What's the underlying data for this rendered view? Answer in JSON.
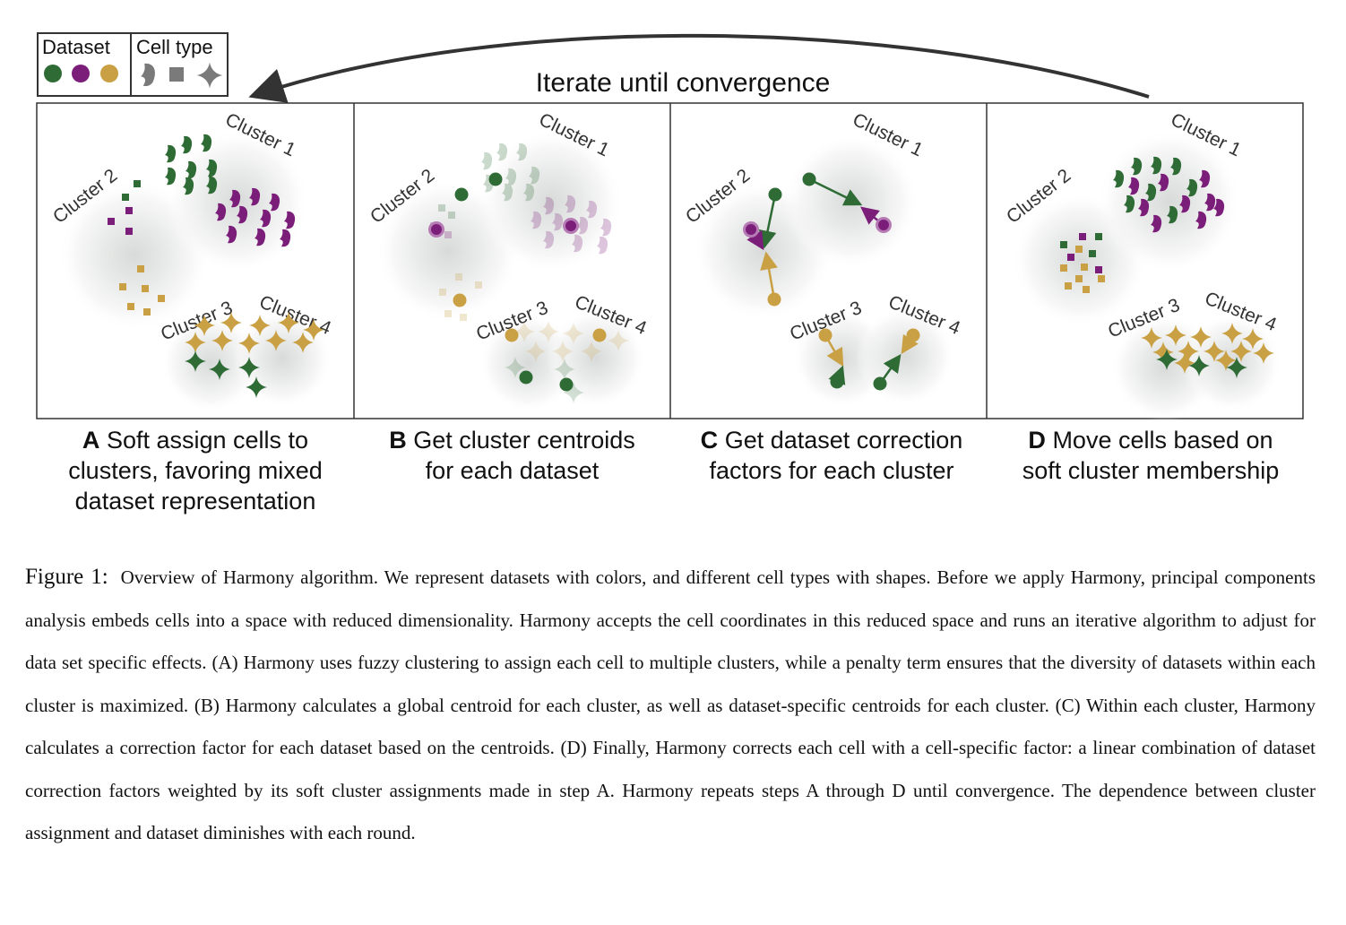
{
  "legend": {
    "dataset_label": "Dataset",
    "celltype_label": "Cell type"
  },
  "iterate_label": "Iterate until convergence",
  "clusters": {
    "c1": "Cluster 1",
    "c2": "Cluster 2",
    "c3": "Cluster 3",
    "c4": "Cluster 4"
  },
  "panels": [
    {
      "letter": "A",
      "line1": "Soft assign cells to",
      "line2": "clusters, favoring mixed",
      "line3": "dataset representation"
    },
    {
      "letter": "B",
      "line1": "Get cluster centroids",
      "line2": "for each dataset"
    },
    {
      "letter": "C",
      "line1": "Get dataset correction",
      "line2": "factors for each cluster"
    },
    {
      "letter": "D",
      "line1": "Move cells based on",
      "line2": "soft cluster membership"
    }
  ],
  "caption": {
    "label": "Figure 1:",
    "text": "Overview of Harmony algorithm.  We represent datasets with colors, and different cell types with shapes.  Before we apply Harmony, principal components analysis embeds cells into a space with reduced dimensionality. Harmony accepts the cell coordinates in this reduced space and runs an iterative algorithm to adjust for data set specific effects.  (A) Harmony uses fuzzy clustering to assign each cell to multiple clusters, while a penalty term ensures that the diversity of datasets within each cluster is maximized. (B) Harmony calculates a global centroid for each cluster, as well as dataset-specific centroids for each cluster. (C) Within each cluster, Harmony calculates a correction factor for each dataset based on the centroids. (D) Finally, Harmony corrects each cell with a cell-specific factor: a linear combination of dataset correction factors weighted by its soft cluster assignments made in step A. Harmony repeats steps A through D until convergence. The dependence between cluster assignment and dataset diminishes with each round."
  },
  "colors": {
    "green": "#2e6b35",
    "purple": "#7b1e7a",
    "gold": "#c9a043",
    "gray": "#7a7a7a"
  }
}
